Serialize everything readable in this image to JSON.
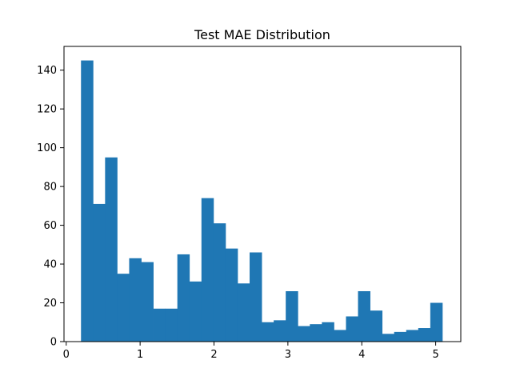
{
  "chart_data": {
    "type": "bar",
    "subtype": "histogram",
    "title": "Test MAE Distribution",
    "xlabel": "",
    "ylabel": "",
    "xlim": [
      -0.03,
      5.34
    ],
    "ylim": [
      0,
      152.25
    ],
    "grid": false,
    "legend": "none",
    "bar_color": "#1f77b4",
    "bin_start": 0.2,
    "bin_width": 0.163,
    "counts": [
      145,
      71,
      95,
      35,
      43,
      41,
      17,
      17,
      45,
      31,
      74,
      61,
      48,
      30,
      46,
      10,
      11,
      26,
      8,
      9,
      10,
      6,
      13,
      26,
      16,
      4,
      5,
      6,
      7,
      20
    ],
    "x_ticks": [
      {
        "value": 0,
        "label": "0"
      },
      {
        "value": 1,
        "label": "1"
      },
      {
        "value": 2,
        "label": "2"
      },
      {
        "value": 3,
        "label": "3"
      },
      {
        "value": 4,
        "label": "4"
      },
      {
        "value": 5,
        "label": "5"
      }
    ],
    "y_ticks": [
      {
        "value": 0,
        "label": "0"
      },
      {
        "value": 20,
        "label": "20"
      },
      {
        "value": 40,
        "label": "40"
      },
      {
        "value": 60,
        "label": "60"
      },
      {
        "value": 80,
        "label": "80"
      },
      {
        "value": 100,
        "label": "100"
      },
      {
        "value": 120,
        "label": "120"
      },
      {
        "value": 140,
        "label": "140"
      }
    ]
  }
}
